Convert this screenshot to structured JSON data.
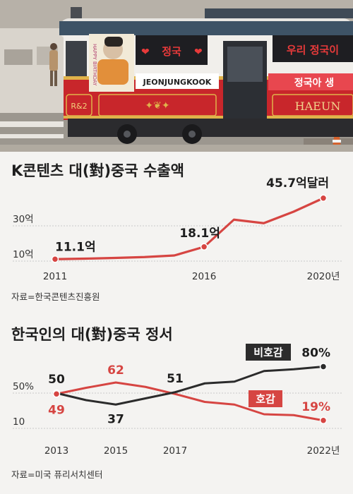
{
  "photo": {
    "signs": {
      "left_heart": "정국",
      "right_top": "우리 정국이",
      "right_bottom": "정국아 생",
      "name_banner": "JEONJUNGKOOK",
      "car_brand": "HAEUN",
      "emblem": "R&2",
      "birthday_vertical": "HAPPY BIRTHDAY"
    }
  },
  "colors": {
    "red": "#d64542",
    "black": "#2b2b2b",
    "grid": "#c9c9c9",
    "background": "#f4f3f1"
  },
  "chart_data": [
    {
      "type": "line",
      "title": "K콘텐츠 대(對)중국 수출액",
      "x": [
        2011,
        2012,
        2013,
        2014,
        2015,
        2016,
        2017,
        2018,
        2019,
        2020
      ],
      "series": [
        {
          "values": [
            11.1,
            11.4,
            11.8,
            12.3,
            13.2,
            18.1,
            33.5,
            31.5,
            38.0,
            45.7
          ]
        }
      ],
      "xticks": [
        "2011",
        "2016",
        "2020년"
      ],
      "yticks": [
        "10억",
        "30억"
      ],
      "ytick_values": [
        10,
        30
      ],
      "ylim": [
        10,
        48
      ],
      "grid": true,
      "labels": [
        {
          "index": 0,
          "text": "11.1억"
        },
        {
          "index": 5,
          "text": "18.1억"
        },
        {
          "index": 9,
          "text": "45.7억달러"
        }
      ],
      "source": "자료=한국콘텐츠진흥원"
    },
    {
      "type": "line",
      "title": "한국인의 대(對)중국 정서",
      "x": [
        2013,
        2014,
        2015,
        2016,
        2017,
        2018,
        2019,
        2020,
        2021,
        2022
      ],
      "series": [
        {
          "name": "비호감",
          "values": [
            50,
            42,
            37,
            44,
            51,
            61,
            63,
            75,
            77,
            80
          ]
        },
        {
          "name": "호감",
          "values": [
            49,
            56,
            62,
            57,
            49,
            40,
            37,
            26,
            25,
            19
          ]
        }
      ],
      "xticks": [
        "2013",
        "2015",
        "2017",
        "2022년"
      ],
      "xtick_values": [
        2013,
        2015,
        2017,
        2022
      ],
      "yticks": [
        "10",
        "50%"
      ],
      "ytick_values": [
        10,
        50
      ],
      "ylim": [
        10,
        82
      ],
      "grid": true,
      "labels": [
        {
          "series": 0,
          "index": 0,
          "text": "50"
        },
        {
          "series": 0,
          "index": 2,
          "text": "37"
        },
        {
          "series": 0,
          "index": 4,
          "text": "51"
        },
        {
          "series": 0,
          "index": 9,
          "text": "80%"
        },
        {
          "series": 1,
          "index": 0,
          "text": "49"
        },
        {
          "series": 1,
          "index": 2,
          "text": "62"
        },
        {
          "series": 1,
          "index": 9,
          "text": "19%"
        }
      ],
      "legend_tags": [
        {
          "series": 0,
          "text": "비호감"
        },
        {
          "series": 1,
          "text": "호감"
        }
      ],
      "source": "자료=미국 퓨리서치센터"
    }
  ]
}
